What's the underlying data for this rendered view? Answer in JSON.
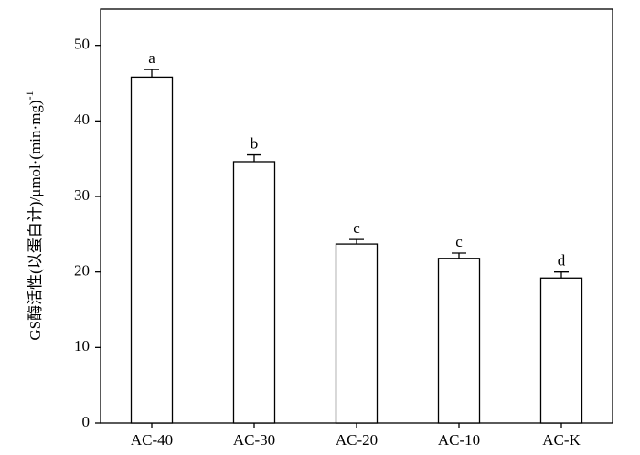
{
  "chart_data": {
    "type": "bar",
    "ylabel": "GS酶活性(以蛋白计)/μmol·(min·mg)",
    "ylabel_sup": "-1",
    "categories": [
      "AC-40",
      "AC-30",
      "AC-20",
      "AC-10",
      "AC-K"
    ],
    "values": [
      45.8,
      34.6,
      23.7,
      21.8,
      19.2
    ],
    "errors": [
      1.0,
      0.9,
      0.6,
      0.7,
      0.8
    ],
    "letters": [
      "a",
      "b",
      "c",
      "c",
      "d"
    ],
    "color": "#ffffff",
    "ylim": [
      0,
      54.8
    ],
    "yticks": [
      0,
      10,
      20,
      30,
      40,
      50
    ]
  }
}
